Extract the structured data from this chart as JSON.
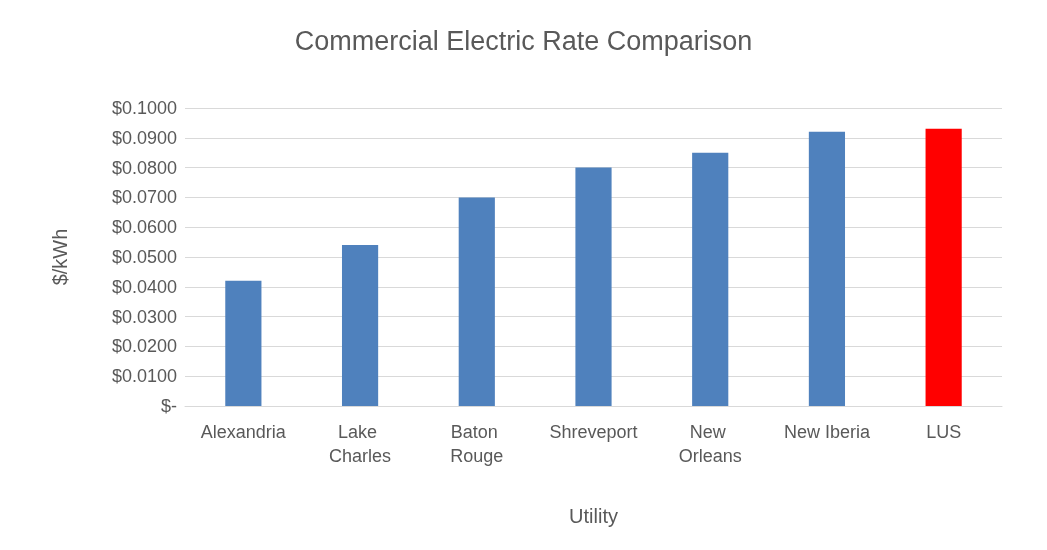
{
  "chart_data": {
    "type": "bar",
    "title": "Commercial Electric Rate Comparison",
    "xlabel": "Utility",
    "ylabel": "$/kWh",
    "categories": [
      "Alexandria",
      "Lake Charles",
      "Baton Rouge",
      "Shreveport",
      "New Orleans",
      "New Iberia",
      "LUS"
    ],
    "values": [
      0.042,
      0.054,
      0.07,
      0.08,
      0.085,
      0.092,
      0.093
    ],
    "colors": [
      "#4f81bd",
      "#4f81bd",
      "#4f81bd",
      "#4f81bd",
      "#4f81bd",
      "#4f81bd",
      "#ff0000"
    ],
    "ylim": [
      0,
      0.1
    ],
    "yticks": [
      {
        "value": 0,
        "label": "$-"
      },
      {
        "value": 0.01,
        "label": "$0.0100"
      },
      {
        "value": 0.02,
        "label": "$0.0200"
      },
      {
        "value": 0.03,
        "label": "$0.0300"
      },
      {
        "value": 0.04,
        "label": "$0.0400"
      },
      {
        "value": 0.05,
        "label": "$0.0500"
      },
      {
        "value": 0.06,
        "label": "$0.0600"
      },
      {
        "value": 0.07,
        "label": "$0.0700"
      },
      {
        "value": 0.08,
        "label": "$0.0800"
      },
      {
        "value": 0.09,
        "label": "$0.0900"
      },
      {
        "value": 0.1,
        "label": "$0.1000"
      }
    ],
    "grid": "y"
  }
}
